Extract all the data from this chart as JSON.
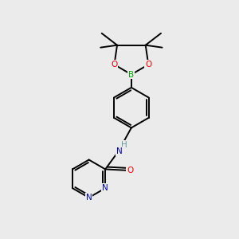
{
  "bg_color": "#ebebeb",
  "atom_colors": {
    "C": "#000000",
    "H": "#5f9ea0",
    "N": "#0000cd",
    "O": "#ff0000",
    "B": "#00aa00"
  },
  "line_color": "#000000",
  "line_width": 1.4,
  "fig_width": 3.0,
  "fig_height": 3.0,
  "dpi": 100
}
